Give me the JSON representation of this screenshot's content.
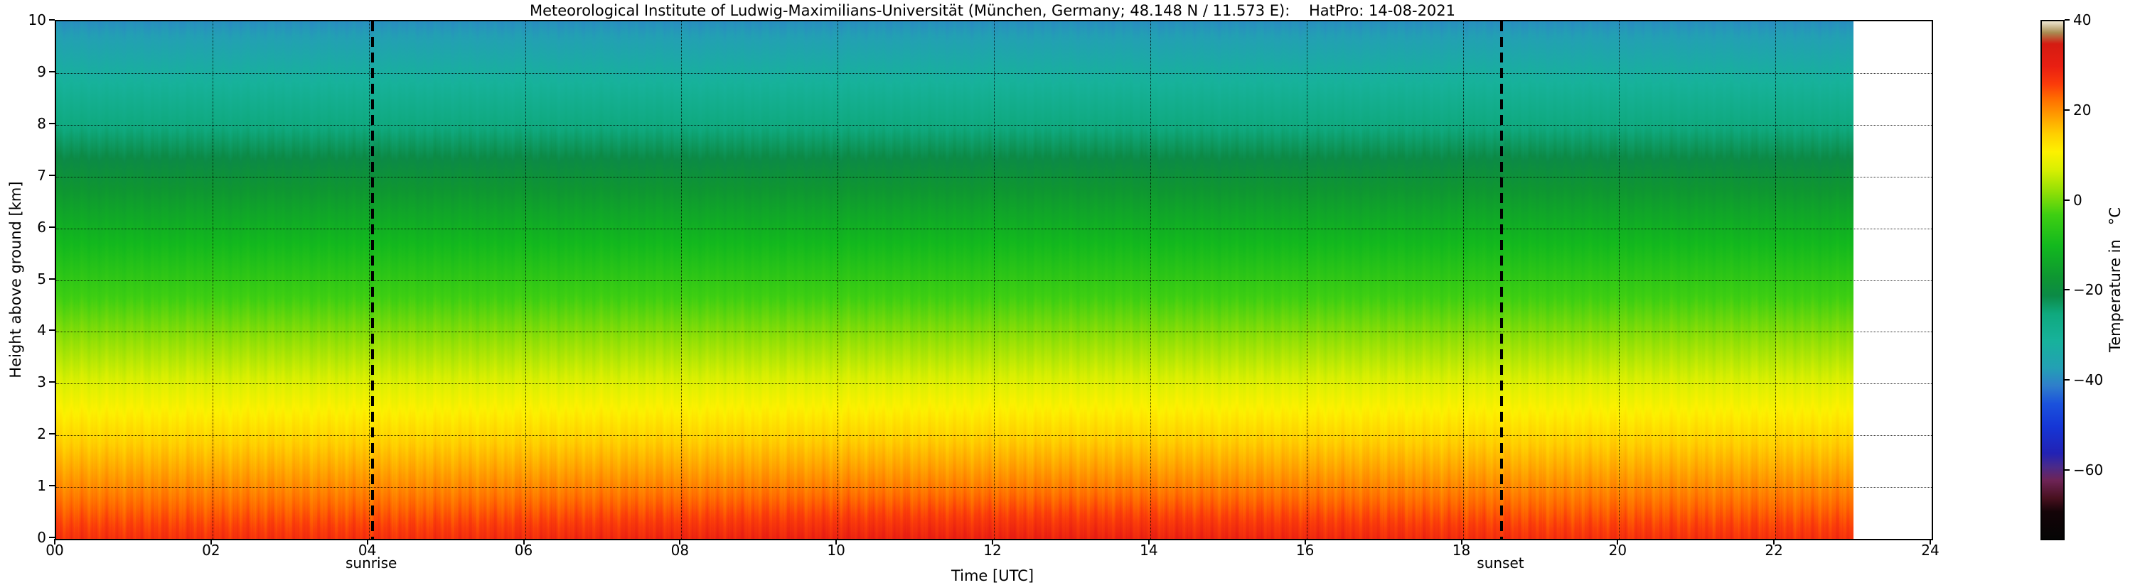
{
  "annotations": {
    "sunrise_label": "sunrise",
    "sunset_label": "sunset"
  },
  "chart_data": {
    "type": "heatmap",
    "title": "Meteorological Institute of Ludwig-Maximilians-Universität (München, Germany; 48.148 N / 11.573 E):    HatPro: 14-08-2021",
    "xlabel": "Time [UTC]",
    "ylabel": "Height above ground [km]",
    "colorbar_label": "Temperature in   °C",
    "xlim": [
      0,
      24
    ],
    "ylim": [
      0,
      10
    ],
    "x_tick_values": [
      0,
      2,
      4,
      6,
      8,
      10,
      12,
      14,
      16,
      18,
      20,
      22,
      24
    ],
    "x_tick_labels": [
      "00",
      "02",
      "04",
      "06",
      "08",
      "10",
      "12",
      "14",
      "16",
      "18",
      "20",
      "22",
      "24"
    ],
    "y_tick_values": [
      0,
      1,
      2,
      3,
      4,
      5,
      6,
      7,
      8,
      9,
      10
    ],
    "y_tick_labels": [
      "0",
      "1",
      "2",
      "3",
      "4",
      "5",
      "6",
      "7",
      "8",
      "9",
      "10"
    ],
    "colorbar_tick_values": [
      40,
      20,
      0,
      -20,
      -40,
      -60
    ],
    "colorbar_tick_labels": [
      "40",
      "20",
      "0",
      "−20",
      "−40",
      "−60"
    ],
    "colorbar_range": [
      -75,
      40
    ],
    "grid": true,
    "data_start_time": 0.0,
    "data_end_time": 23.0,
    "sunrise_time": 4.05,
    "sunset_time": 18.5,
    "profile": {
      "heights_km": [
        0,
        0.5,
        1,
        1.5,
        2,
        2.5,
        3,
        3.5,
        4,
        4.5,
        5,
        5.5,
        6,
        6.5,
        7,
        7.5,
        8,
        8.5,
        9,
        9.5,
        10
      ],
      "temps_c": [
        27.5,
        24.0,
        20.5,
        17.2,
        14.0,
        10.8,
        7.6,
        4.4,
        1.2,
        -2.0,
        -5.2,
        -8.5,
        -11.8,
        -15.2,
        -18.6,
        -22.0,
        -25.4,
        -28.8,
        -32.2,
        -35.6,
        -39.0
      ]
    },
    "diurnal_amplitude_c": 2.2,
    "colormap_stops": [
      [
        -75,
        "#050505"
      ],
      [
        -69,
        "#140408"
      ],
      [
        -66,
        "#47101e"
      ],
      [
        -62,
        "#6e2456"
      ],
      [
        -59,
        "#4a2a8a"
      ],
      [
        -56,
        "#2222b4"
      ],
      [
        -50,
        "#1536d6"
      ],
      [
        -45,
        "#1b52dc"
      ],
      [
        -41,
        "#2f7ecb"
      ],
      [
        -37,
        "#23a0b4"
      ],
      [
        -31,
        "#17b29b"
      ],
      [
        -25,
        "#0fa97e"
      ],
      [
        -21,
        "#0c8a46"
      ],
      [
        -17,
        "#0e9632"
      ],
      [
        -10,
        "#12b81e"
      ],
      [
        -3,
        "#3ecf12"
      ],
      [
        2,
        "#8fdf06"
      ],
      [
        7,
        "#d8ef02"
      ],
      [
        11,
        "#fdf100"
      ],
      [
        15,
        "#ffcf00"
      ],
      [
        19,
        "#ff9d00"
      ],
      [
        23,
        "#ff6a00"
      ],
      [
        26,
        "#fb3c0a"
      ],
      [
        30,
        "#e91f12"
      ],
      [
        35,
        "#d41c12"
      ],
      [
        37.5,
        "#a98c52"
      ],
      [
        40,
        "#efe7d2"
      ]
    ]
  }
}
